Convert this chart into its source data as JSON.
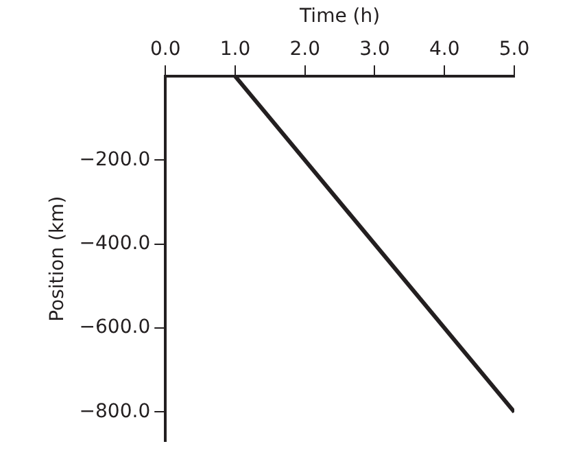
{
  "chart_data": {
    "type": "line",
    "xlabel": "Time (h)",
    "ylabel": "Position (km)",
    "x": [
      1,
      5
    ],
    "series": [
      {
        "color": "#231f20",
        "values": [
          0,
          -800
        ]
      }
    ],
    "xlim": [
      0,
      5
    ],
    "ylim": [
      -870,
      0
    ],
    "xticks": [
      {
        "value": 0,
        "label": "0.0"
      },
      {
        "value": 1,
        "label": "1.0"
      },
      {
        "value": 2,
        "label": "2.0"
      },
      {
        "value": 3,
        "label": "3.0"
      },
      {
        "value": 4,
        "label": "4.0"
      },
      {
        "value": 5,
        "label": "5.0"
      }
    ],
    "yticks": [
      {
        "value": -200,
        "label": "−200.0"
      },
      {
        "value": -400,
        "label": "−400.0"
      },
      {
        "value": -600,
        "label": "−600.0"
      },
      {
        "value": -800,
        "label": "−800.0"
      }
    ],
    "grid": false,
    "legend": false,
    "marker": "none",
    "line_style": "solid"
  }
}
